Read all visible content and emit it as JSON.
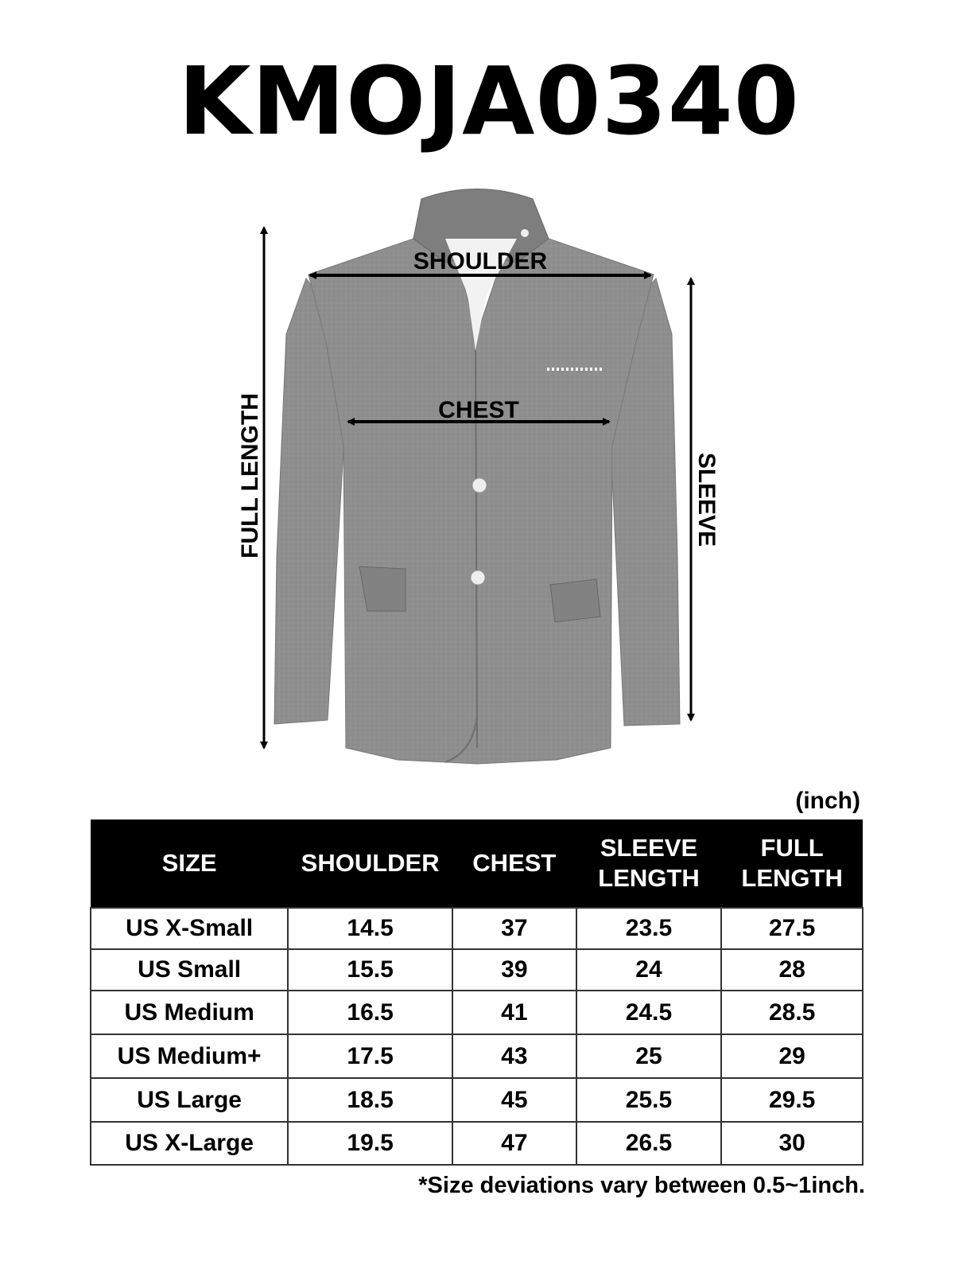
{
  "title": "KMOJA0340",
  "diagram": {
    "labels": {
      "shoulder": "SHOULDER",
      "chest": "CHEST",
      "full_length": "FULL LENGTH",
      "sleeve": "SLEEVE"
    },
    "jacket_color": "#8a8a8a"
  },
  "unit": "(inch)",
  "table": {
    "headers": [
      "SIZE",
      "SHOULDER",
      "CHEST",
      "SLEEVE LENGTH",
      "FULL LENGTH"
    ],
    "header_lines": [
      [
        "SIZE"
      ],
      [
        "SHOULDER"
      ],
      [
        "CHEST"
      ],
      [
        "SLEEVE",
        "LENGTH"
      ],
      [
        "FULL",
        "LENGTH"
      ]
    ],
    "rows": [
      [
        "US X-Small",
        "14.5",
        "37",
        "23.5",
        "27.5"
      ],
      [
        "US Small",
        "15.5",
        "39",
        "24",
        "28"
      ],
      [
        "US Medium",
        "16.5",
        "41",
        "24.5",
        "28.5"
      ],
      [
        "US Medium+",
        "17.5",
        "43",
        "25",
        "29"
      ],
      [
        "US Large",
        "18.5",
        "45",
        "25.5",
        "29.5"
      ],
      [
        "US X-Large",
        "19.5",
        "47",
        "26.5",
        "30"
      ]
    ]
  },
  "footnote": "*Size deviations vary between 0.5~1inch."
}
